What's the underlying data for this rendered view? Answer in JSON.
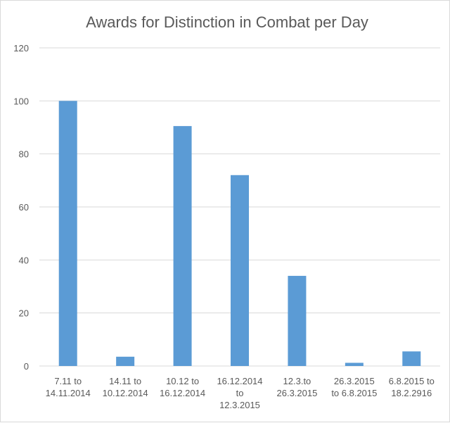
{
  "chart_data": {
    "type": "bar",
    "title": "Awards for Distinction in Combat per Day",
    "xlabel": "",
    "ylabel": "",
    "ylim": [
      0,
      120
    ],
    "yticks": [
      0,
      20,
      40,
      60,
      80,
      100,
      120
    ],
    "grid": true,
    "legend": "none",
    "bar_color": "#5b9bd5",
    "categories": [
      [
        "7.11 to",
        "14.11.2014"
      ],
      [
        "14.11 to",
        "10.12.2014"
      ],
      [
        "10.12 to",
        "16.12.2014"
      ],
      [
        "16.12.2014",
        "to",
        "12.3.2015"
      ],
      [
        "12.3.to",
        "26.3.2015"
      ],
      [
        "26.3.2015",
        "to 6.8.2015"
      ],
      [
        "6.8.2015 to",
        "18.2.2916"
      ]
    ],
    "values": [
      100,
      3.5,
      90.5,
      72,
      34,
      1.2,
      5.5
    ]
  }
}
